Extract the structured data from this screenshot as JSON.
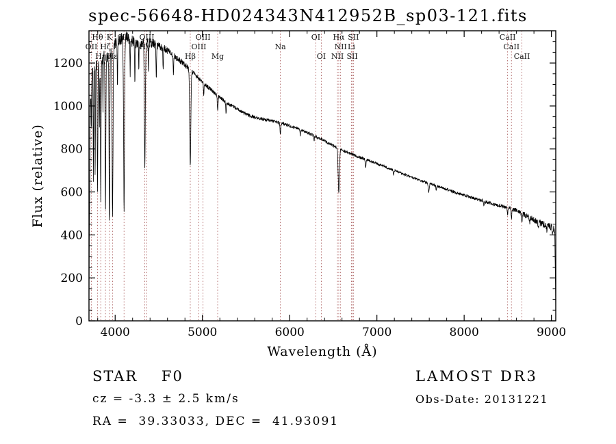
{
  "chart_data": {
    "type": "line",
    "title": "spec-56648-HD024343N412952B_sp03-121.fits",
    "xlabel": "Wavelength (Å)",
    "ylabel": "Flux (relative)",
    "xlim": [
      3700,
      9050
    ],
    "ylim": [
      0,
      1350
    ],
    "x_ticks": [
      4000,
      5000,
      6000,
      7000,
      8000,
      9000
    ],
    "y_ticks": [
      0,
      200,
      400,
      600,
      800,
      1000,
      1200
    ],
    "x_minor_step": 200,
    "y_minor_step": 50,
    "grid": false,
    "legend": "none",
    "colors": {
      "spectrum": "#000000",
      "marker_line": "#aa5c5c",
      "frame": "#000000",
      "background": "#ffffff",
      "marker_label": "#141414"
    },
    "continuum": [
      [
        3700,
        60
      ],
      [
        3706,
        500
      ],
      [
        3715,
        1000
      ],
      [
        3730,
        1150
      ],
      [
        3760,
        1185
      ],
      [
        3800,
        1210
      ],
      [
        3850,
        1228
      ],
      [
        3900,
        1235
      ],
      [
        3950,
        1248
      ],
      [
        4000,
        1290
      ],
      [
        4060,
        1312
      ],
      [
        4120,
        1322
      ],
      [
        4180,
        1305
      ],
      [
        4250,
        1292
      ],
      [
        4320,
        1297
      ],
      [
        4400,
        1295
      ],
      [
        4480,
        1282
      ],
      [
        4560,
        1268
      ],
      [
        4640,
        1245
      ],
      [
        4720,
        1218
      ],
      [
        4800,
        1192
      ],
      [
        4900,
        1152
      ],
      [
        5000,
        1110
      ],
      [
        5100,
        1075
      ],
      [
        5200,
        1040
      ],
      [
        5300,
        1010
      ],
      [
        5400,
        985
      ],
      [
        5500,
        962
      ],
      [
        5600,
        948
      ],
      [
        5700,
        938
      ],
      [
        5800,
        930
      ],
      [
        5900,
        920
      ],
      [
        6000,
        908
      ],
      [
        6100,
        893
      ],
      [
        6200,
        876
      ],
      [
        6300,
        858
      ],
      [
        6400,
        838
      ],
      [
        6500,
        816
      ],
      [
        6600,
        795
      ],
      [
        6700,
        778
      ],
      [
        6800,
        762
      ],
      [
        6900,
        747
      ],
      [
        7000,
        732
      ],
      [
        7100,
        716
      ],
      [
        7200,
        700
      ],
      [
        7300,
        684
      ],
      [
        7400,
        668
      ],
      [
        7500,
        653
      ],
      [
        7600,
        640
      ],
      [
        7700,
        626
      ],
      [
        7800,
        612
      ],
      [
        7900,
        598
      ],
      [
        8000,
        585
      ],
      [
        8100,
        572
      ],
      [
        8200,
        560
      ],
      [
        8300,
        548
      ],
      [
        8400,
        537
      ],
      [
        8500,
        527
      ],
      [
        8600,
        512
      ],
      [
        8700,
        492
      ],
      [
        8800,
        470
      ],
      [
        8900,
        450
      ],
      [
        9000,
        432
      ],
      [
        9030,
        424
      ],
      [
        9040,
        380
      ],
      [
        9050,
        40
      ]
    ],
    "absorption_lines": [
      {
        "c": 3727,
        "d": 0.2,
        "w": 4
      },
      {
        "c": 3750,
        "d": 0.42,
        "w": 4
      },
      {
        "c": 3771,
        "d": 0.46,
        "w": 4
      },
      {
        "c": 3798,
        "d": 0.52,
        "w": 5
      },
      {
        "c": 3820,
        "d": 0.25,
        "w": 4
      },
      {
        "c": 3835,
        "d": 0.56,
        "w": 5
      },
      {
        "c": 3860,
        "d": 0.2,
        "w": 3
      },
      {
        "c": 3889,
        "d": 0.58,
        "w": 6
      },
      {
        "c": 3934,
        "d": 0.64,
        "w": 6
      },
      {
        "c": 3970,
        "d": 0.62,
        "w": 7
      },
      {
        "c": 4026,
        "d": 0.18,
        "w": 4
      },
      {
        "c": 4102,
        "d": 0.6,
        "w": 8
      },
      {
        "c": 4172,
        "d": 0.12,
        "w": 4
      },
      {
        "c": 4226,
        "d": 0.14,
        "w": 4
      },
      {
        "c": 4271,
        "d": 0.1,
        "w": 3
      },
      {
        "c": 4340,
        "d": 0.44,
        "w": 8
      },
      {
        "c": 4383,
        "d": 0.12,
        "w": 4
      },
      {
        "c": 4471,
        "d": 0.12,
        "w": 4
      },
      {
        "c": 4550,
        "d": 0.08,
        "w": 4
      },
      {
        "c": 4668,
        "d": 0.07,
        "w": 4
      },
      {
        "c": 4861,
        "d": 0.38,
        "w": 9
      },
      {
        "c": 5015,
        "d": 0.05,
        "w": 4
      },
      {
        "c": 5175,
        "d": 0.07,
        "w": 6
      },
      {
        "c": 5270,
        "d": 0.05,
        "w": 5
      },
      {
        "c": 5893,
        "d": 0.06,
        "w": 6
      },
      {
        "c": 6122,
        "d": 0.03,
        "w": 4
      },
      {
        "c": 6280,
        "d": 0.03,
        "w": 5
      },
      {
        "c": 6563,
        "d": 0.26,
        "w": 10
      },
      {
        "c": 6870,
        "d": 0.05,
        "w": 7
      },
      {
        "c": 7190,
        "d": 0.03,
        "w": 6
      },
      {
        "c": 7594,
        "d": 0.06,
        "w": 9
      },
      {
        "c": 7680,
        "d": 0.03,
        "w": 6
      },
      {
        "c": 8227,
        "d": 0.03,
        "w": 5
      },
      {
        "c": 8498,
        "d": 0.06,
        "w": 5
      },
      {
        "c": 8542,
        "d": 0.08,
        "w": 6
      },
      {
        "c": 8662,
        "d": 0.07,
        "w": 6
      },
      {
        "c": 8750,
        "d": 0.05,
        "w": 5
      },
      {
        "c": 8850,
        "d": 0.05,
        "w": 5
      },
      {
        "c": 8950,
        "d": 0.04,
        "w": 5
      },
      {
        "c": 9015,
        "d": 0.05,
        "w": 5
      }
    ],
    "noise_profile": [
      [
        3700,
        40
      ],
      [
        3900,
        35
      ],
      [
        4100,
        30
      ],
      [
        4400,
        22
      ],
      [
        4700,
        14
      ],
      [
        5000,
        10
      ],
      [
        5500,
        8
      ],
      [
        6000,
        7
      ],
      [
        6500,
        7
      ],
      [
        7000,
        6
      ],
      [
        7500,
        6
      ],
      [
        8000,
        7
      ],
      [
        8500,
        9
      ],
      [
        8700,
        13
      ],
      [
        8900,
        16
      ],
      [
        9050,
        20
      ]
    ],
    "spectral_line_markers": [
      {
        "label": "Hθ",
        "wl": 3798,
        "row": 1
      },
      {
        "label": "K",
        "wl": 3934,
        "row": 1
      },
      {
        "label": "Hδ",
        "wl": 4102,
        "row": 1
      },
      {
        "label": "OIII",
        "wl": 4363,
        "row": 1
      },
      {
        "label": "OIII",
        "wl": 5007,
        "row": 1
      },
      {
        "label": "OI",
        "wl": 6300,
        "row": 1
      },
      {
        "label": "Hα",
        "wl": 6563,
        "row": 1
      },
      {
        "label": "SII",
        "wl": 6731,
        "row": 1
      },
      {
        "label": "CaII",
        "wl": 8498,
        "row": 1
      },
      {
        "label": "OII",
        "wl": 3727,
        "row": 2
      },
      {
        "label": "Hζ",
        "wl": 3889,
        "row": 2
      },
      {
        "label": "Hγ",
        "wl": 4340,
        "row": 2
      },
      {
        "label": "OIII",
        "wl": 4959,
        "row": 2
      },
      {
        "label": "Na",
        "wl": 5893,
        "row": 2
      },
      {
        "label": "NII",
        "wl": 6584,
        "row": 2
      },
      {
        "label": "Li",
        "wl": 6708,
        "row": 2
      },
      {
        "label": "CaII",
        "wl": 8542,
        "row": 2
      },
      {
        "label": "Hη",
        "wl": 3835,
        "row": 3
      },
      {
        "label": "Hε",
        "wl": 3970,
        "row": 3
      },
      {
        "label": "Hβ",
        "wl": 4861,
        "row": 3
      },
      {
        "label": "Mg",
        "wl": 5175,
        "row": 3
      },
      {
        "label": "OI",
        "wl": 6363,
        "row": 3
      },
      {
        "label": "NII",
        "wl": 6548,
        "row": 3
      },
      {
        "label": "SII",
        "wl": 6717,
        "row": 3
      },
      {
        "label": "CaII",
        "wl": 8662,
        "row": 3
      }
    ]
  },
  "annotations": {
    "star_class": "STAR    F0",
    "survey": "LAMOST DR3",
    "cz": "cz = -3.3 ± 2.5 km/s",
    "obs_date": "Obs-Date: 20131221",
    "coords": "RA =  39.33033, DEC =  41.93091"
  }
}
